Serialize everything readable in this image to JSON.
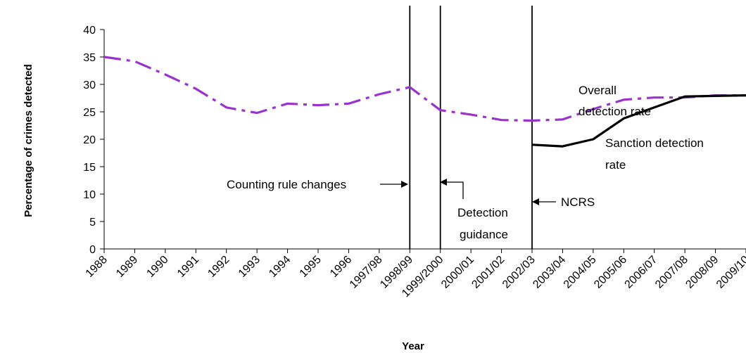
{
  "chart_data": {
    "type": "line",
    "title": "",
    "xlabel": "Year",
    "ylabel": "Percentage of crimes detected",
    "ylim": [
      0,
      40
    ],
    "yticks": [
      0,
      5,
      10,
      15,
      20,
      25,
      30,
      35,
      40
    ],
    "categories": [
      "1988",
      "1989",
      "1990",
      "1991",
      "1992",
      "1993",
      "1994",
      "1995",
      "1996",
      "1997/98",
      "1998/99",
      "1999/2000",
      "2000/01",
      "2001/02",
      "2002/03",
      "2003/04",
      "2004/05",
      "2005/06",
      "2006/07",
      "2007/08",
      "2008/09",
      "2009/10"
    ],
    "series": [
      {
        "name": "Overall detection rate",
        "color": "#9933cc",
        "style": "dash-dot",
        "values": [
          35,
          34.2,
          31.8,
          29.2,
          25.8,
          24.8,
          26.5,
          26.2,
          26.5,
          28.2,
          29.5,
          25.3,
          24.5,
          23.5,
          23.4,
          23.6,
          25.5,
          27.2,
          27.6,
          27.6,
          28.0,
          28.0
        ]
      },
      {
        "name": "Sanction detection rate",
        "color": "#000000",
        "style": "solid",
        "values": [
          null,
          null,
          null,
          null,
          null,
          null,
          null,
          null,
          null,
          null,
          null,
          null,
          null,
          null,
          19.0,
          18.7,
          20.0,
          23.8,
          25.8,
          27.8,
          27.9,
          28.0
        ]
      }
    ],
    "vlines": [
      {
        "category": "1998/99"
      },
      {
        "category": "1999/2000"
      },
      {
        "category": "2002/03"
      }
    ],
    "annotations": {
      "counting": "Counting rule changes",
      "detection_1": "Detection",
      "detection_2": "guidance",
      "ncrs": "NCRS",
      "overall_1": "Overall",
      "overall_2": "detection rate",
      "sanction_1": "Sanction detection",
      "sanction_2": "rate"
    }
  }
}
